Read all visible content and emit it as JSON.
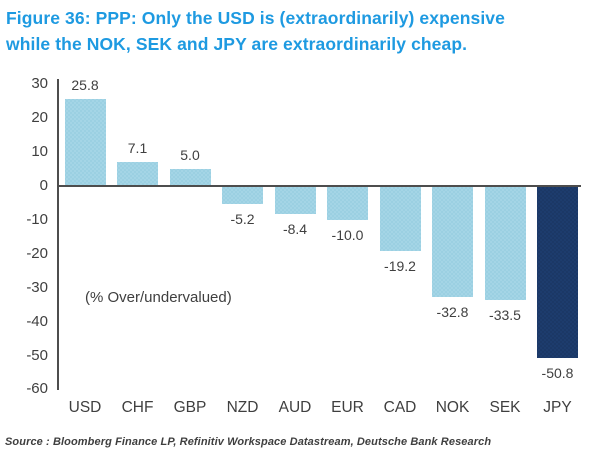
{
  "title": {
    "line1": "Figure 36: PPP: Only the USD is (extraordinarily) expensive",
    "line2": "while the NOK, SEK and JPY are extraordinarily cheap."
  },
  "source": "Source : Bloomberg Finance LP, Refinitiv Workspace Datastream, Deutsche Bank Research",
  "colors": {
    "title": "#1e9ae1",
    "bar": "#a4d5e6",
    "bar_dot": "#7fc2d8",
    "bar_highlight": "#1d3c6d",
    "bar_highlight_dot": "#142c53",
    "axis": "#4d4d4d",
    "text": "#3f3f3f"
  },
  "chart_data": {
    "type": "bar",
    "title": "Figure 36: PPP: Only the USD is (extraordinarily) expensive while the NOK, SEK and JPY are extraordinarily cheap.",
    "categories": [
      "USD",
      "CHF",
      "GBP",
      "NZD",
      "AUD",
      "EUR",
      "CAD",
      "NOK",
      "SEK",
      "JPY"
    ],
    "values": [
      25.8,
      7.1,
      5.0,
      -5.2,
      -8.4,
      -10.0,
      -19.2,
      -32.8,
      -33.5,
      -50.8
    ],
    "value_labels": [
      "25.8",
      "7.1",
      "5.0",
      "-5.2",
      "-8.4",
      "-10.0",
      "-19.2",
      "-32.8",
      "-33.5",
      "-50.8"
    ],
    "highlight_category": "JPY",
    "annotation": "(% Over/undervalued)",
    "xlabel": "",
    "ylabel": "",
    "ylim": [
      -60,
      30
    ],
    "ytick_step": 10,
    "yticks": [
      30,
      20,
      10,
      0,
      -10,
      -20,
      -30,
      -40,
      -50,
      -60
    ],
    "grid": false,
    "legend": false
  }
}
